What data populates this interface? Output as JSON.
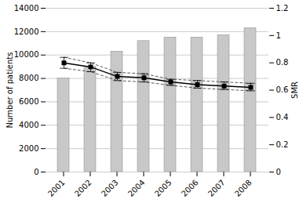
{
  "chart_data": {
    "type": "bar",
    "categories": [
      "2001",
      "2002",
      "2003",
      "2004",
      "2005",
      "2006",
      "2007",
      "2008"
    ],
    "ylabel": "Number of patients",
    "y2label": "SMR",
    "ylim": [
      0,
      14000
    ],
    "yticks": [
      0,
      2000,
      4000,
      6000,
      8000,
      10000,
      12000,
      14000
    ],
    "y2lim": [
      0,
      1.2
    ],
    "y2ticks": [
      0,
      0.2,
      0.4,
      0.6,
      0.8,
      1,
      1.2
    ],
    "grid": true,
    "series": [
      {
        "type": "bar",
        "color": "#c8c8c8",
        "values": [
          8000,
          9000,
          10300,
          11200,
          11500,
          11500,
          11700,
          12300
        ]
      },
      {
        "type": "line",
        "axis": "y2",
        "color": "#444444",
        "line_style": "dashed",
        "values": [
          0.84,
          0.8,
          0.73,
          0.72,
          0.68,
          0.67,
          0.66,
          0.65
        ]
      },
      {
        "type": "line",
        "axis": "y2",
        "color": "#444444",
        "line_style": "dashed",
        "values": [
          0.76,
          0.735,
          0.67,
          0.66,
          0.635,
          0.615,
          0.605,
          0.595
        ]
      },
      {
        "type": "line",
        "axis": "y2",
        "color": "#000000",
        "marker": "square",
        "line_style": "solid",
        "values": [
          0.8,
          0.77,
          0.7,
          0.69,
          0.66,
          0.64,
          0.63,
          0.62
        ],
        "error_lower": [
          0.76,
          0.735,
          0.67,
          0.66,
          0.635,
          0.615,
          0.605,
          0.595
        ],
        "error_upper": [
          0.84,
          0.8,
          0.73,
          0.72,
          0.68,
          0.67,
          0.66,
          0.65
        ]
      }
    ]
  }
}
